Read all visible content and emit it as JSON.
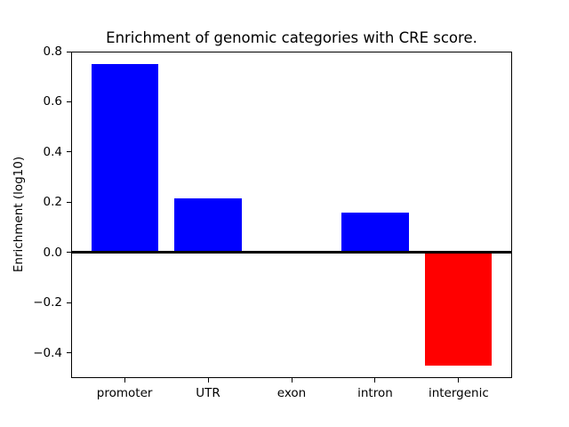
{
  "figure": {
    "background_color": "#ffffff",
    "text_color": "#000000"
  },
  "chart_data": {
    "type": "bar",
    "title": "Enrichment of genomic categories with CRE score.",
    "xlabel": "",
    "ylabel": "Enrichment (log10)",
    "categories": [
      "promoter",
      "UTR",
      "exon",
      "intron",
      "intergenic"
    ],
    "values": [
      0.75,
      0.215,
      0.0,
      0.16,
      -0.45
    ],
    "bar_colors": [
      "#0000ff",
      "#0000ff",
      "#0000ff",
      "#0000ff",
      "#ff0000"
    ],
    "positive_color": "#0000ff",
    "negative_color": "#ff0000",
    "bar_width": 0.8,
    "ylim": [
      -0.5,
      0.8
    ],
    "xlim": [
      -0.64,
      4.64
    ],
    "yticks": [
      {
        "value": 0.8,
        "label": "0.8"
      },
      {
        "value": 0.6,
        "label": "0.6"
      },
      {
        "value": 0.4,
        "label": "0.4"
      },
      {
        "value": 0.2,
        "label": "0.2"
      },
      {
        "value": 0.0,
        "label": "0.0"
      },
      {
        "value": -0.2,
        "label": "−0.2"
      },
      {
        "value": -0.4,
        "label": "−0.4"
      }
    ],
    "zero_line": {
      "value": 0.0,
      "color": "#000000"
    },
    "grid": false,
    "legend": null,
    "axis_color": "#000000"
  }
}
